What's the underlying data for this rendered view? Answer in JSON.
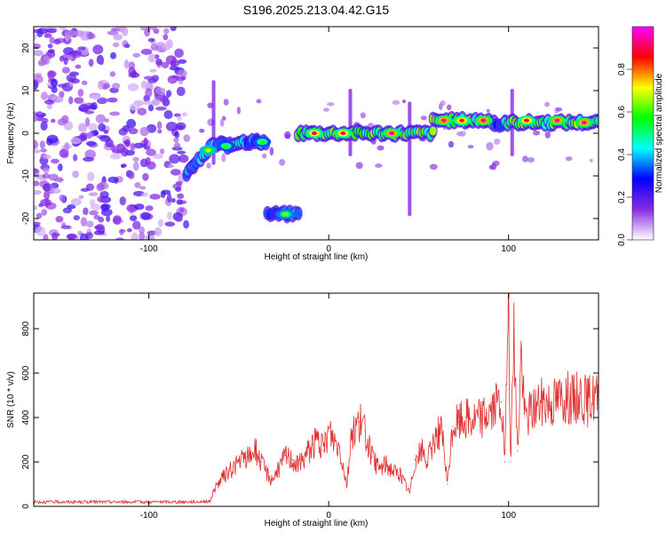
{
  "title": "S196.2025.213.04.42.G15",
  "chart_data": [
    {
      "type": "heatmap",
      "xlabel": "Height of straight line (km)",
      "ylabel": "Frequency (Hz)",
      "xlim": [
        -164,
        150
      ],
      "ylim": [
        -25,
        25
      ],
      "xticks": [
        -100,
        0,
        100
      ],
      "yticks": [
        -20,
        -10,
        0,
        10,
        20
      ],
      "colorbar": {
        "label": "Normalized spectral amplitude",
        "range": [
          0,
          1
        ],
        "ticks": [
          "0.0",
          "0.2",
          "0.4",
          "0.6",
          "0.8"
        ],
        "colors": [
          "#ffffff",
          "#8a2be2",
          "#0000ff",
          "#00ffff",
          "#00ff00",
          "#ffff00",
          "#ff0000",
          "#ff00ff"
        ]
      },
      "noise_region": {
        "x": [
          -164,
          -79
        ],
        "y": [
          -25,
          25
        ],
        "level": 0.15
      },
      "ridge": [
        {
          "x": -79,
          "y": -10
        },
        {
          "x": -75,
          "y": -7.5
        },
        {
          "x": -70,
          "y": -5.5
        },
        {
          "x": -65,
          "y": -3
        },
        {
          "x": -60,
          "y": -2.5
        },
        {
          "x": -55,
          "y": -3
        },
        {
          "x": -50,
          "y": -2
        },
        {
          "x": -45,
          "y": -2
        },
        {
          "x": -40,
          "y": -2
        },
        {
          "x": -35,
          "y": -2
        }
      ],
      "segments": [
        {
          "x": [
            -34,
            -17
          ],
          "y": -19,
          "amplitude": 0.55
        },
        {
          "x": [
            -17,
            58
          ],
          "y": 0,
          "amplitude": 0.85
        },
        {
          "x": [
            58,
            92
          ],
          "y": 3,
          "amplitude": 0.85
        },
        {
          "x": [
            92,
            98
          ],
          "y": 2,
          "amplitude": 0.5
        },
        {
          "x": [
            98,
            150
          ],
          "y": 2.5,
          "amplitude": 0.85
        }
      ],
      "peaks": [
        {
          "x": -67,
          "y": -4,
          "amplitude": 0.7
        },
        {
          "x": -57,
          "y": -3,
          "amplitude": 0.6
        },
        {
          "x": -37,
          "y": -2,
          "amplitude": 0.6
        },
        {
          "x": -24,
          "y": -19,
          "amplitude": 0.65
        },
        {
          "x": -8,
          "y": 0,
          "amplitude": 0.9
        },
        {
          "x": 8,
          "y": 0,
          "amplitude": 0.9
        },
        {
          "x": 35,
          "y": 0,
          "amplitude": 0.95
        },
        {
          "x": 64,
          "y": 3,
          "amplitude": 0.95
        },
        {
          "x": 74,
          "y": 3,
          "amplitude": 0.9
        },
        {
          "x": 86,
          "y": 3,
          "amplitude": 0.95
        },
        {
          "x": 110,
          "y": 3,
          "amplitude": 0.9
        },
        {
          "x": 127,
          "y": 3,
          "amplitude": 0.95
        },
        {
          "x": 142,
          "y": 2.5,
          "amplitude": 0.95
        }
      ],
      "spikes": [
        {
          "x": -64,
          "y": [
            -7,
            12
          ]
        },
        {
          "x": 12,
          "y": [
            -5,
            10
          ]
        },
        {
          "x": 45,
          "y": [
            -19,
            7
          ]
        },
        {
          "x": 102,
          "y": [
            -5,
            10
          ]
        }
      ]
    },
    {
      "type": "line",
      "xlabel": "Height of straight line (km)",
      "ylabel": "SNR (10 * v/v)",
      "xlim": [
        -164,
        150
      ],
      "ylim": [
        0,
        960
      ],
      "xticks": [
        -100,
        0,
        100
      ],
      "yticks": [
        0,
        200,
        400,
        600,
        800
      ],
      "color": "#e03030",
      "series": [
        {
          "values": [
            {
              "x": -164,
              "y": 20
            },
            {
              "x": -130,
              "y": 20
            },
            {
              "x": -100,
              "y": 20
            },
            {
              "x": -80,
              "y": 20
            },
            {
              "x": -66,
              "y": 22
            },
            {
              "x": -64,
              "y": 70
            },
            {
              "x": -60,
              "y": 120
            },
            {
              "x": -55,
              "y": 160
            },
            {
              "x": -50,
              "y": 200
            },
            {
              "x": -45,
              "y": 220
            },
            {
              "x": -41,
              "y": 260
            },
            {
              "x": -38,
              "y": 200
            },
            {
              "x": -35,
              "y": 160
            },
            {
              "x": -32,
              "y": 120
            },
            {
              "x": -29,
              "y": 150
            },
            {
              "x": -24,
              "y": 230
            },
            {
              "x": -20,
              "y": 210
            },
            {
              "x": -17,
              "y": 180
            },
            {
              "x": -13,
              "y": 230
            },
            {
              "x": -9,
              "y": 280
            },
            {
              "x": -6,
              "y": 300
            },
            {
              "x": -3,
              "y": 250
            },
            {
              "x": 0,
              "y": 340
            },
            {
              "x": 3,
              "y": 300
            },
            {
              "x": 6,
              "y": 270
            },
            {
              "x": 10,
              "y": 100
            },
            {
              "x": 13,
              "y": 340
            },
            {
              "x": 17,
              "y": 380
            },
            {
              "x": 20,
              "y": 340
            },
            {
              "x": 24,
              "y": 220
            },
            {
              "x": 28,
              "y": 170
            },
            {
              "x": 32,
              "y": 190
            },
            {
              "x": 36,
              "y": 160
            },
            {
              "x": 40,
              "y": 140
            },
            {
              "x": 45,
              "y": 60
            },
            {
              "x": 48,
              "y": 210
            },
            {
              "x": 52,
              "y": 250
            },
            {
              "x": 55,
              "y": 200
            },
            {
              "x": 58,
              "y": 280
            },
            {
              "x": 60,
              "y": 340
            },
            {
              "x": 63,
              "y": 330
            },
            {
              "x": 66,
              "y": 100
            },
            {
              "x": 69,
              "y": 360
            },
            {
              "x": 72,
              "y": 380
            },
            {
              "x": 76,
              "y": 400
            },
            {
              "x": 80,
              "y": 390
            },
            {
              "x": 84,
              "y": 400
            },
            {
              "x": 88,
              "y": 420
            },
            {
              "x": 92,
              "y": 440
            },
            {
              "x": 96,
              "y": 470
            },
            {
              "x": 98,
              "y": 200
            },
            {
              "x": 100,
              "y": 950
            },
            {
              "x": 101,
              "y": 200
            },
            {
              "x": 103,
              "y": 740
            },
            {
              "x": 105,
              "y": 250
            },
            {
              "x": 107,
              "y": 700
            },
            {
              "x": 109,
              "y": 400
            },
            {
              "x": 112,
              "y": 430
            },
            {
              "x": 116,
              "y": 460
            },
            {
              "x": 120,
              "y": 480
            },
            {
              "x": 124,
              "y": 470
            },
            {
              "x": 128,
              "y": 490
            },
            {
              "x": 132,
              "y": 500
            },
            {
              "x": 136,
              "y": 480
            },
            {
              "x": 140,
              "y": 510
            },
            {
              "x": 144,
              "y": 470
            },
            {
              "x": 148,
              "y": 500
            },
            {
              "x": 150,
              "y": 480
            }
          ]
        }
      ]
    }
  ]
}
